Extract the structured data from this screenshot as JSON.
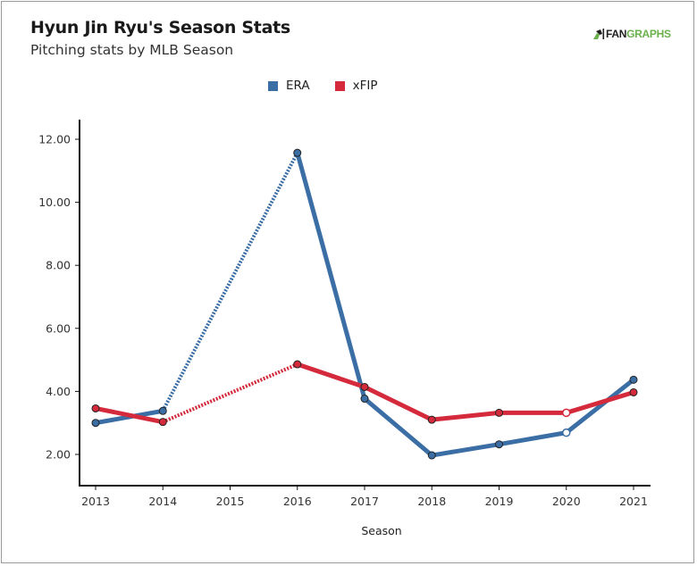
{
  "header": {
    "title": "Hyun Jin Ryu's Season Stats",
    "subtitle": "Pitching stats by MLB Season",
    "logo_fan": "FAN",
    "logo_graphs": "GRAPHS"
  },
  "legend": [
    {
      "name": "ERA",
      "color": "#3b6ea5"
    },
    {
      "name": "xFIP",
      "color": "#d42a3c"
    }
  ],
  "chart_data": {
    "type": "line",
    "title": "Hyun Jin Ryu's Season Stats",
    "subtitle": "Pitching stats by MLB Season",
    "xlabel": "Season",
    "ylabel": "",
    "x": [
      2013,
      2014,
      2015,
      2016,
      2017,
      2018,
      2019,
      2020,
      2021
    ],
    "x_tick_labels": [
      "2013",
      "2014",
      "2015",
      "2016",
      "2017",
      "2018",
      "2019",
      "2020",
      "2021"
    ],
    "y_tick_values": [
      2,
      4,
      6,
      8,
      10,
      12
    ],
    "y_tick_labels": [
      "2.00",
      "4.00",
      "6.00",
      "8.00",
      "10.00",
      "12.00"
    ],
    "ylim": [
      1.0,
      12.6
    ],
    "xlim": [
      2012.75,
      2021.25
    ],
    "grid": false,
    "legend_position": "top-center",
    "series": [
      {
        "name": "ERA",
        "color": "#3b6ea5",
        "points": [
          {
            "x": 2013,
            "y": 3.0
          },
          {
            "x": 2014,
            "y": 3.38
          },
          {
            "x": 2016,
            "y": 11.57
          },
          {
            "x": 2017,
            "y": 3.77
          },
          {
            "x": 2018,
            "y": 1.97
          },
          {
            "x": 2019,
            "y": 2.32
          },
          {
            "x": 2020,
            "y": 2.69,
            "hollow": true
          },
          {
            "x": 2021,
            "y": 4.37
          }
        ],
        "dashed_segments": [
          [
            2014,
            2016
          ]
        ]
      },
      {
        "name": "xFIP",
        "color": "#d42a3c",
        "points": [
          {
            "x": 2013,
            "y": 3.46
          },
          {
            "x": 2014,
            "y": 3.03
          },
          {
            "x": 2016,
            "y": 4.86
          },
          {
            "x": 2017,
            "y": 4.14
          },
          {
            "x": 2018,
            "y": 3.1
          },
          {
            "x": 2019,
            "y": 3.32
          },
          {
            "x": 2020,
            "y": 3.32,
            "hollow": true
          },
          {
            "x": 2021,
            "y": 3.97
          }
        ],
        "dashed_segments": [
          [
            2014,
            2016
          ]
        ]
      }
    ]
  }
}
